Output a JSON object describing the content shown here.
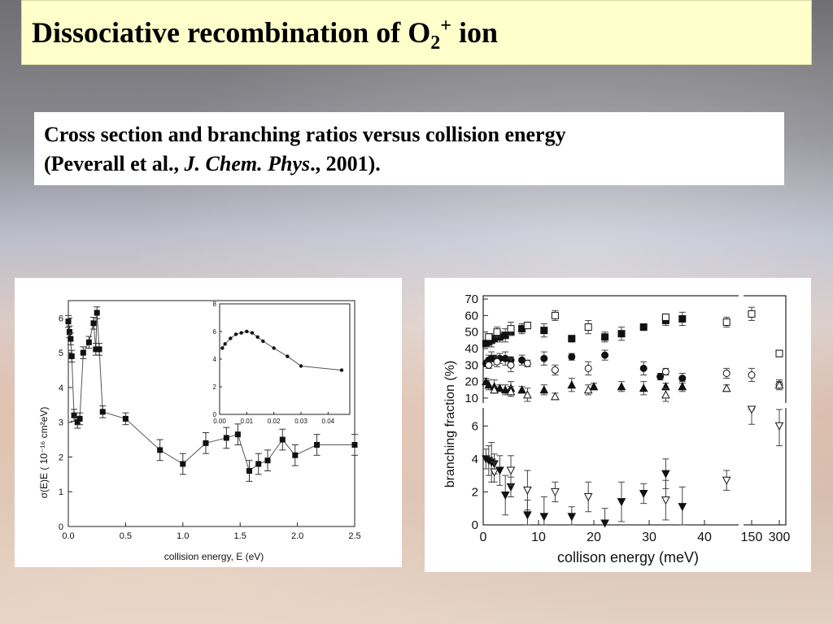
{
  "slide": {
    "title_main": "Dissociative recombination of O",
    "title_sub": "2",
    "title_sup": "+",
    "title_end": " ion",
    "caption_line1": "Cross section and branching ratios versus collision energy",
    "caption_line2_a": "(Peverall et al., ",
    "caption_line2_journal": "J. Chem. Phys",
    "caption_line2_b": "., 2001)."
  },
  "chart_data": [
    {
      "type": "line",
      "xlabel": "collision energy, E (eV)",
      "ylabel": "σ(E)E ( 10⁻¹⁶ cm²eV)",
      "xlim": [
        0,
        2.5
      ],
      "ylim": [
        0,
        6.5
      ],
      "xticks": [
        "0.0",
        "0.5",
        "1.0",
        "1.5",
        "2.0",
        "2.5"
      ],
      "yticks": [
        "0",
        "1",
        "2",
        "3",
        "4",
        "5",
        "6"
      ],
      "x": [
        0.0,
        0.01,
        0.02,
        0.03,
        0.05,
        0.08,
        0.1,
        0.13,
        0.18,
        0.22,
        0.24,
        0.25,
        0.27,
        0.3,
        0.5,
        0.8,
        1.0,
        1.2,
        1.38,
        1.48,
        1.58,
        1.66,
        1.74,
        1.87,
        1.98,
        2.17,
        2.5
      ],
      "y": [
        5.9,
        5.6,
        5.4,
        4.9,
        3.2,
        3.0,
        3.1,
        5.0,
        5.3,
        5.85,
        5.1,
        6.15,
        5.1,
        3.3,
        3.1,
        2.2,
        1.8,
        2.4,
        2.55,
        2.65,
        1.6,
        1.8,
        1.9,
        2.5,
        2.05,
        2.35,
        2.35
      ],
      "inset": {
        "xlim": [
          0,
          0.048
        ],
        "ylim": [
          0,
          8
        ],
        "xticks": [
          "0.00",
          "0.01",
          "0.02",
          "0.03",
          "0.04"
        ],
        "yticks": [
          "0",
          "2",
          "4",
          "6",
          "8"
        ],
        "x": [
          0.001,
          0.002,
          0.004,
          0.006,
          0.008,
          0.01,
          0.012,
          0.014,
          0.016,
          0.02,
          0.025,
          0.03,
          0.045
        ],
        "y": [
          4.8,
          5.1,
          5.5,
          5.8,
          5.9,
          6.0,
          5.9,
          5.6,
          5.3,
          4.8,
          4.2,
          3.5,
          3.2
        ]
      }
    },
    {
      "type": "scatter",
      "xlabel": "collison energy (meV)",
      "ylabel": "branching fraction (%)",
      "xticks": [
        "0",
        "10",
        "20",
        "30",
        "40",
        "150",
        "300"
      ],
      "upper_yticks": [
        "10",
        "20",
        "30",
        "40",
        "50",
        "60",
        "70"
      ],
      "lower_yticks": [
        "0",
        "2",
        "4",
        "6"
      ],
      "series": [
        {
          "marker": "filled-square",
          "x": [
            0.5,
            1,
            1.5,
            2,
            3,
            4,
            5,
            7,
            11,
            16,
            22,
            25,
            29,
            33,
            36
          ],
          "y": [
            43,
            44,
            45,
            46,
            47,
            48,
            50,
            52,
            51,
            46,
            47,
            49,
            53,
            57,
            58
          ]
        },
        {
          "marker": "open-square",
          "x": [
            1,
            2.5,
            5,
            8,
            13,
            19,
            33,
            44,
            47,
            53
          ],
          "y": [
            47,
            50,
            52,
            54,
            60,
            53,
            59,
            56,
            61,
            37
          ]
        },
        {
          "marker": "filled-circle",
          "x": [
            0.5,
            1,
            1.5,
            2,
            3,
            4,
            5,
            7,
            11,
            16,
            22,
            29,
            32,
            36
          ],
          "y": [
            31,
            33,
            34,
            34,
            34,
            34,
            33,
            33,
            34,
            35,
            36,
            28,
            23,
            22
          ]
        },
        {
          "marker": "open-circle",
          "x": [
            1,
            2.5,
            5,
            8,
            13,
            19,
            33,
            44,
            47,
            53
          ],
          "y": [
            30,
            32,
            30,
            31,
            27,
            28,
            26,
            25,
            24,
            18
          ]
        },
        {
          "marker": "filled-triangle",
          "x": [
            0.5,
            1,
            2,
            3,
            4,
            5,
            7,
            11,
            16,
            20,
            25,
            29,
            33,
            36
          ],
          "y": [
            20,
            18,
            17,
            16,
            15,
            16,
            15,
            15,
            18,
            17,
            17,
            16,
            17,
            17
          ]
        },
        {
          "marker": "open-triangle",
          "x": [
            2,
            5,
            8,
            13,
            19,
            33,
            44,
            53
          ],
          "y": [
            15,
            14,
            12,
            11,
            15,
            12,
            16,
            18
          ]
        },
        {
          "marker": "filled-triangle-down",
          "x": [
            0.5,
            1,
            1.5,
            2,
            3,
            4,
            5,
            8,
            11,
            16,
            22,
            25,
            29,
            33,
            36
          ],
          "y": [
            4.0,
            3.9,
            3.8,
            3.7,
            3.3,
            1.8,
            2.3,
            0.6,
            0.5,
            0.5,
            0.1,
            1.4,
            1.9,
            3.1,
            1.1
          ]
        },
        {
          "marker": "open-triangle-down",
          "x": [
            2,
            5,
            8,
            13,
            19,
            33,
            44,
            47,
            53
          ],
          "y": [
            3.2,
            3.3,
            2.1,
            2.0,
            1.7,
            1.5,
            2.7,
            7.0,
            6.0
          ]
        }
      ]
    }
  ]
}
